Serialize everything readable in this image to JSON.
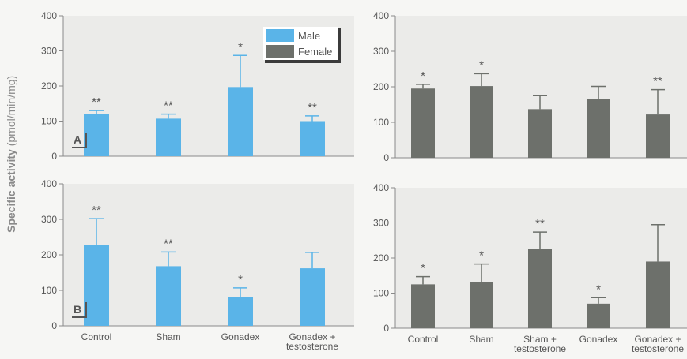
{
  "figure": {
    "ylabel_bold": "Specific activity",
    "ylabel_unit": "(pmol/min/mg)"
  },
  "colors": {
    "male": "#5ab4e8",
    "female": "#6d706b",
    "panel_bg": "#ebebe9",
    "axis": "#8a8a8a",
    "text": "#555555"
  },
  "chart_data": [
    {
      "id": "A-male",
      "type": "bar",
      "panel_label": "A",
      "categories": [
        "Control",
        "Sham",
        "Gonadex",
        "Gonadex + testosterone"
      ],
      "values": [
        120,
        107,
        197,
        100
      ],
      "errors": [
        10,
        13,
        90,
        15
      ],
      "significance": [
        "**",
        "**",
        "*",
        "**"
      ],
      "series_color": "male",
      "ylim": [
        0,
        400
      ],
      "yticks": [
        0,
        100,
        200,
        300,
        400
      ],
      "legend": [
        {
          "name": "Male",
          "color": "male"
        },
        {
          "name": "Female",
          "color": "female"
        }
      ],
      "legend_position": "top-right"
    },
    {
      "id": "A-female",
      "type": "bar",
      "categories": [
        "Control",
        "Sham",
        "Sham + testosterone",
        "Gonadex",
        "Gonadex + testosterone"
      ],
      "values": [
        195,
        202,
        137,
        166,
        122
      ],
      "errors": [
        12,
        35,
        38,
        35,
        70
      ],
      "significance": [
        "*",
        "*",
        "",
        "",
        "**"
      ],
      "series_color": "female",
      "ylim": [
        0,
        400
      ],
      "yticks": [
        0,
        100,
        200,
        300,
        400
      ]
    },
    {
      "id": "B-male",
      "type": "bar",
      "panel_label": "B",
      "categories": [
        "Control",
        "Sham",
        "Gonadex",
        "Gonadex + testosterone"
      ],
      "values": [
        227,
        168,
        82,
        162
      ],
      "errors": [
        75,
        40,
        25,
        45
      ],
      "significance": [
        "**",
        "**",
        "*",
        ""
      ],
      "series_color": "male",
      "ylim": [
        0,
        400
      ],
      "yticks": [
        0,
        100,
        200,
        300,
        400
      ],
      "xlabels": [
        "Control",
        "Sham",
        "Gonadex",
        "Gonadex +|testosterone"
      ]
    },
    {
      "id": "B-female",
      "type": "bar",
      "categories": [
        "Control",
        "Sham",
        "Sham + testosterone",
        "Gonadex",
        "Gonadex + testosterone"
      ],
      "values": [
        125,
        131,
        226,
        70,
        190
      ],
      "errors": [
        22,
        52,
        48,
        17,
        105
      ],
      "significance": [
        "*",
        "*",
        "**",
        "*",
        ""
      ],
      "series_color": "female",
      "ylim": [
        0,
        400
      ],
      "yticks": [
        0,
        100,
        200,
        300,
        400
      ],
      "xlabels": [
        "Control",
        "Sham",
        "Sham +|testosterone",
        "Gonadex",
        "Gonadex +|testosterone"
      ]
    }
  ]
}
